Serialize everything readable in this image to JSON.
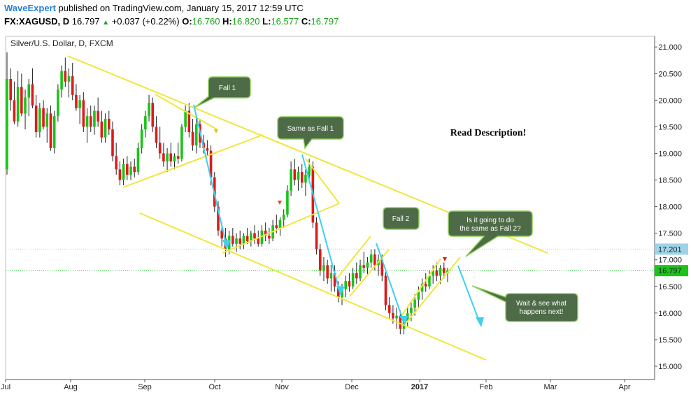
{
  "header": {
    "author": "WaveExpert",
    "published_text": " published on TradingView.com, January 15, 2017 12:59 UTC",
    "symbol": "FX:XAGUSD, D",
    "last": "16.797",
    "change": "+0.037 (+0.22%)",
    "o_label": "O:",
    "o_value": "16.760",
    "h_label": "H:",
    "h_value": "16.820",
    "l_label": "L:",
    "l_value": "16.577",
    "c_label": "C:",
    "c_value": "16.797"
  },
  "chart_data": {
    "type": "candlestick",
    "title": "Silver/U.S. Dollar, D, FXCM",
    "ylim": [
      14.75,
      21.2
    ],
    "y_ticks": [
      "21.000",
      "20.500",
      "20.000",
      "19.500",
      "19.000",
      "18.500",
      "18.000",
      "17.500",
      "17.000",
      "16.500",
      "16.000",
      "15.500",
      "15.000"
    ],
    "x_ticks": [
      "Jul",
      "Aug",
      "Sep",
      "Oct",
      "Nov",
      "Dec",
      "2017",
      "Feb",
      "Mar",
      "Apr"
    ],
    "price_labels": [
      {
        "value": 17.201,
        "text": "17.201",
        "color": "#9ed3e8"
      },
      {
        "value": 16.797,
        "text": "16.797",
        "color": "#19c419"
      }
    ],
    "colors": {
      "up": "#19c419",
      "down": "#e01a1a",
      "trendline": "#f0e63c",
      "arrow": "#3fd0ef",
      "callout_bg": "#4e6b47",
      "callout_border": "#8fd05a"
    },
    "note": "Read Description!",
    "callouts": [
      {
        "text": [
          "Fall 1"
        ]
      },
      {
        "text": [
          "Same as Fall 1"
        ]
      },
      {
        "text": [
          "Fall 2"
        ]
      },
      {
        "text": [
          "Is it going to do",
          "the same as Fall 2?"
        ]
      },
      {
        "text": [
          "Wait & see what",
          "happens next!"
        ]
      }
    ],
    "candles": [
      {
        "o": 18.7,
        "h": 20.9,
        "l": 18.6,
        "c": 20.4
      },
      {
        "o": 20.4,
        "h": 20.6,
        "l": 19.8,
        "c": 20.0
      },
      {
        "o": 20.0,
        "h": 20.35,
        "l": 19.55,
        "c": 19.6
      },
      {
        "o": 19.6,
        "h": 20.55,
        "l": 19.5,
        "c": 20.25
      },
      {
        "o": 20.25,
        "h": 20.5,
        "l": 19.7,
        "c": 19.75
      },
      {
        "o": 19.75,
        "h": 20.2,
        "l": 19.45,
        "c": 20.05
      },
      {
        "o": 20.05,
        "h": 20.4,
        "l": 19.7,
        "c": 20.3
      },
      {
        "o": 20.3,
        "h": 20.6,
        "l": 19.85,
        "c": 19.9
      },
      {
        "o": 19.9,
        "h": 20.1,
        "l": 19.3,
        "c": 19.4
      },
      {
        "o": 19.4,
        "h": 19.95,
        "l": 19.3,
        "c": 19.85
      },
      {
        "o": 19.85,
        "h": 20.0,
        "l": 19.45,
        "c": 19.5
      },
      {
        "o": 19.5,
        "h": 19.85,
        "l": 19.2,
        "c": 19.75
      },
      {
        "o": 19.75,
        "h": 19.9,
        "l": 19.05,
        "c": 19.1
      },
      {
        "o": 19.1,
        "h": 19.8,
        "l": 19.0,
        "c": 19.7
      },
      {
        "o": 19.7,
        "h": 20.3,
        "l": 19.6,
        "c": 20.2
      },
      {
        "o": 20.2,
        "h": 20.65,
        "l": 20.05,
        "c": 20.55
      },
      {
        "o": 20.55,
        "h": 20.8,
        "l": 20.25,
        "c": 20.35
      },
      {
        "o": 20.35,
        "h": 20.6,
        "l": 20.05,
        "c": 20.45
      },
      {
        "o": 20.45,
        "h": 20.7,
        "l": 20.0,
        "c": 20.1
      },
      {
        "o": 20.1,
        "h": 20.3,
        "l": 19.8,
        "c": 19.85
      },
      {
        "o": 19.85,
        "h": 20.1,
        "l": 19.55,
        "c": 20.0
      },
      {
        "o": 20.0,
        "h": 20.15,
        "l": 19.4,
        "c": 19.5
      },
      {
        "o": 19.5,
        "h": 19.85,
        "l": 19.2,
        "c": 19.7
      },
      {
        "o": 19.7,
        "h": 19.9,
        "l": 19.4,
        "c": 19.5
      },
      {
        "o": 19.5,
        "h": 19.9,
        "l": 19.35,
        "c": 19.8
      },
      {
        "o": 19.8,
        "h": 20.05,
        "l": 19.5,
        "c": 19.6
      },
      {
        "o": 19.6,
        "h": 19.8,
        "l": 19.2,
        "c": 19.3
      },
      {
        "o": 19.3,
        "h": 19.75,
        "l": 19.2,
        "c": 19.65
      },
      {
        "o": 19.65,
        "h": 19.8,
        "l": 19.35,
        "c": 19.45
      },
      {
        "o": 19.45,
        "h": 19.6,
        "l": 18.85,
        "c": 18.95
      },
      {
        "o": 18.95,
        "h": 19.2,
        "l": 18.6,
        "c": 18.7
      },
      {
        "o": 18.7,
        "h": 18.85,
        "l": 18.4,
        "c": 18.5
      },
      {
        "o": 18.5,
        "h": 18.9,
        "l": 18.4,
        "c": 18.8
      },
      {
        "o": 18.8,
        "h": 18.95,
        "l": 18.5,
        "c": 18.6
      },
      {
        "o": 18.6,
        "h": 18.85,
        "l": 18.5,
        "c": 18.75
      },
      {
        "o": 18.75,
        "h": 18.9,
        "l": 18.55,
        "c": 18.65
      },
      {
        "o": 18.65,
        "h": 19.2,
        "l": 18.6,
        "c": 19.1
      },
      {
        "o": 19.1,
        "h": 19.55,
        "l": 19.0,
        "c": 19.45
      },
      {
        "o": 19.45,
        "h": 19.8,
        "l": 19.3,
        "c": 19.7
      },
      {
        "o": 19.7,
        "h": 20.1,
        "l": 19.6,
        "c": 19.95
      },
      {
        "o": 19.95,
        "h": 20.05,
        "l": 19.4,
        "c": 19.5
      },
      {
        "o": 19.5,
        "h": 19.7,
        "l": 19.1,
        "c": 19.2
      },
      {
        "o": 19.2,
        "h": 19.5,
        "l": 18.9,
        "c": 19.0
      },
      {
        "o": 19.0,
        "h": 19.2,
        "l": 18.75,
        "c": 18.85
      },
      {
        "o": 18.85,
        "h": 19.1,
        "l": 18.65,
        "c": 19.0
      },
      {
        "o": 19.0,
        "h": 19.2,
        "l": 18.75,
        "c": 18.85
      },
      {
        "o": 18.85,
        "h": 19.0,
        "l": 18.7,
        "c": 18.95
      },
      {
        "o": 18.95,
        "h": 19.2,
        "l": 18.8,
        "c": 18.9
      },
      {
        "o": 18.9,
        "h": 19.55,
        "l": 18.85,
        "c": 19.5
      },
      {
        "o": 19.5,
        "h": 19.9,
        "l": 19.4,
        "c": 19.8
      },
      {
        "o": 19.8,
        "h": 19.95,
        "l": 19.3,
        "c": 19.4
      },
      {
        "o": 19.4,
        "h": 19.65,
        "l": 19.05,
        "c": 19.15
      },
      {
        "o": 19.15,
        "h": 19.7,
        "l": 19.0,
        "c": 19.55
      },
      {
        "o": 19.55,
        "h": 19.65,
        "l": 19.1,
        "c": 19.2
      },
      {
        "o": 19.2,
        "h": 19.35,
        "l": 19.0,
        "c": 19.1
      },
      {
        "o": 19.1,
        "h": 19.25,
        "l": 18.95,
        "c": 19.05
      },
      {
        "o": 19.05,
        "h": 19.15,
        "l": 18.4,
        "c": 18.55
      },
      {
        "o": 18.55,
        "h": 18.65,
        "l": 17.9,
        "c": 18.0
      },
      {
        "o": 18.0,
        "h": 18.1,
        "l": 17.45,
        "c": 17.55
      },
      {
        "o": 17.55,
        "h": 17.7,
        "l": 17.25,
        "c": 17.4
      },
      {
        "o": 17.4,
        "h": 17.6,
        "l": 17.05,
        "c": 17.2
      },
      {
        "o": 17.2,
        "h": 17.55,
        "l": 17.1,
        "c": 17.45
      },
      {
        "o": 17.45,
        "h": 17.6,
        "l": 17.25,
        "c": 17.3
      },
      {
        "o": 17.3,
        "h": 17.5,
        "l": 17.15,
        "c": 17.4
      },
      {
        "o": 17.4,
        "h": 17.55,
        "l": 17.2,
        "c": 17.3
      },
      {
        "o": 17.3,
        "h": 17.5,
        "l": 17.2,
        "c": 17.45
      },
      {
        "o": 17.45,
        "h": 17.6,
        "l": 17.3,
        "c": 17.35
      },
      {
        "o": 17.35,
        "h": 17.55,
        "l": 17.25,
        "c": 17.5
      },
      {
        "o": 17.5,
        "h": 17.65,
        "l": 17.3,
        "c": 17.4
      },
      {
        "o": 17.4,
        "h": 17.55,
        "l": 17.25,
        "c": 17.3
      },
      {
        "o": 17.3,
        "h": 17.65,
        "l": 17.25,
        "c": 17.55
      },
      {
        "o": 17.55,
        "h": 17.7,
        "l": 17.35,
        "c": 17.45
      },
      {
        "o": 17.45,
        "h": 17.6,
        "l": 17.3,
        "c": 17.4
      },
      {
        "o": 17.4,
        "h": 17.75,
        "l": 17.35,
        "c": 17.65
      },
      {
        "o": 17.65,
        "h": 17.85,
        "l": 17.5,
        "c": 17.6
      },
      {
        "o": 17.6,
        "h": 17.8,
        "l": 17.45,
        "c": 17.75
      },
      {
        "o": 17.75,
        "h": 17.95,
        "l": 17.6,
        "c": 17.85
      },
      {
        "o": 17.85,
        "h": 18.4,
        "l": 17.8,
        "c": 18.3
      },
      {
        "o": 18.3,
        "h": 18.85,
        "l": 18.2,
        "c": 18.7
      },
      {
        "o": 18.7,
        "h": 18.9,
        "l": 18.4,
        "c": 18.5
      },
      {
        "o": 18.5,
        "h": 18.75,
        "l": 18.3,
        "c": 18.65
      },
      {
        "o": 18.65,
        "h": 18.8,
        "l": 18.35,
        "c": 18.45
      },
      {
        "o": 18.45,
        "h": 18.7,
        "l": 18.2,
        "c": 18.6
      },
      {
        "o": 18.6,
        "h": 18.9,
        "l": 18.45,
        "c": 18.75
      },
      {
        "o": 18.75,
        "h": 18.85,
        "l": 17.6,
        "c": 17.7
      },
      {
        "o": 17.7,
        "h": 17.8,
        "l": 17.1,
        "c": 17.2
      },
      {
        "o": 17.2,
        "h": 17.3,
        "l": 16.7,
        "c": 16.8
      },
      {
        "o": 16.8,
        "h": 17.05,
        "l": 16.6,
        "c": 16.9
      },
      {
        "o": 16.9,
        "h": 17.0,
        "l": 16.55,
        "c": 16.65
      },
      {
        "o": 16.65,
        "h": 16.9,
        "l": 16.4,
        "c": 16.75
      },
      {
        "o": 16.75,
        "h": 16.9,
        "l": 16.4,
        "c": 16.5
      },
      {
        "o": 16.5,
        "h": 16.6,
        "l": 16.2,
        "c": 16.3
      },
      {
        "o": 16.3,
        "h": 16.55,
        "l": 16.15,
        "c": 16.45
      },
      {
        "o": 16.45,
        "h": 16.7,
        "l": 16.3,
        "c": 16.6
      },
      {
        "o": 16.6,
        "h": 16.75,
        "l": 16.4,
        "c": 16.5
      },
      {
        "o": 16.5,
        "h": 16.85,
        "l": 16.45,
        "c": 16.75
      },
      {
        "o": 16.75,
        "h": 16.95,
        "l": 16.55,
        "c": 16.65
      },
      {
        "o": 16.65,
        "h": 17.0,
        "l": 16.6,
        "c": 16.9
      },
      {
        "o": 16.9,
        "h": 17.15,
        "l": 16.75,
        "c": 16.85
      },
      {
        "o": 16.85,
        "h": 17.05,
        "l": 16.7,
        "c": 16.95
      },
      {
        "o": 16.95,
        "h": 17.2,
        "l": 16.85,
        "c": 17.1
      },
      {
        "o": 17.1,
        "h": 17.2,
        "l": 16.8,
        "c": 16.9
      },
      {
        "o": 16.9,
        "h": 17.1,
        "l": 16.7,
        "c": 17.0
      },
      {
        "o": 17.0,
        "h": 17.1,
        "l": 16.6,
        "c": 16.7
      },
      {
        "o": 16.7,
        "h": 16.8,
        "l": 16.05,
        "c": 16.15
      },
      {
        "o": 16.15,
        "h": 16.3,
        "l": 15.9,
        "c": 16.0
      },
      {
        "o": 16.0,
        "h": 16.15,
        "l": 15.8,
        "c": 15.9
      },
      {
        "o": 15.9,
        "h": 16.1,
        "l": 15.7,
        "c": 15.95
      },
      {
        "o": 15.95,
        "h": 16.05,
        "l": 15.6,
        "c": 15.7
      },
      {
        "o": 15.7,
        "h": 15.9,
        "l": 15.6,
        "c": 15.85
      },
      {
        "o": 15.85,
        "h": 16.1,
        "l": 15.75,
        "c": 16.0
      },
      {
        "o": 16.0,
        "h": 16.2,
        "l": 15.85,
        "c": 16.1
      },
      {
        "o": 16.1,
        "h": 16.35,
        "l": 15.95,
        "c": 16.25
      },
      {
        "o": 16.25,
        "h": 16.5,
        "l": 16.1,
        "c": 16.4
      },
      {
        "o": 16.4,
        "h": 16.65,
        "l": 16.25,
        "c": 16.55
      },
      {
        "o": 16.55,
        "h": 16.75,
        "l": 16.4,
        "c": 16.5
      },
      {
        "o": 16.5,
        "h": 16.8,
        "l": 16.45,
        "c": 16.7
      },
      {
        "o": 16.7,
        "h": 16.9,
        "l": 16.55,
        "c": 16.8
      },
      {
        "o": 16.8,
        "h": 16.95,
        "l": 16.6,
        "c": 16.7
      },
      {
        "o": 16.7,
        "h": 16.9,
        "l": 16.55,
        "c": 16.85
      },
      {
        "o": 16.85,
        "h": 16.95,
        "l": 16.65,
        "c": 16.75
      },
      {
        "o": 16.75,
        "h": 16.85,
        "l": 16.58,
        "c": 16.8
      }
    ]
  }
}
